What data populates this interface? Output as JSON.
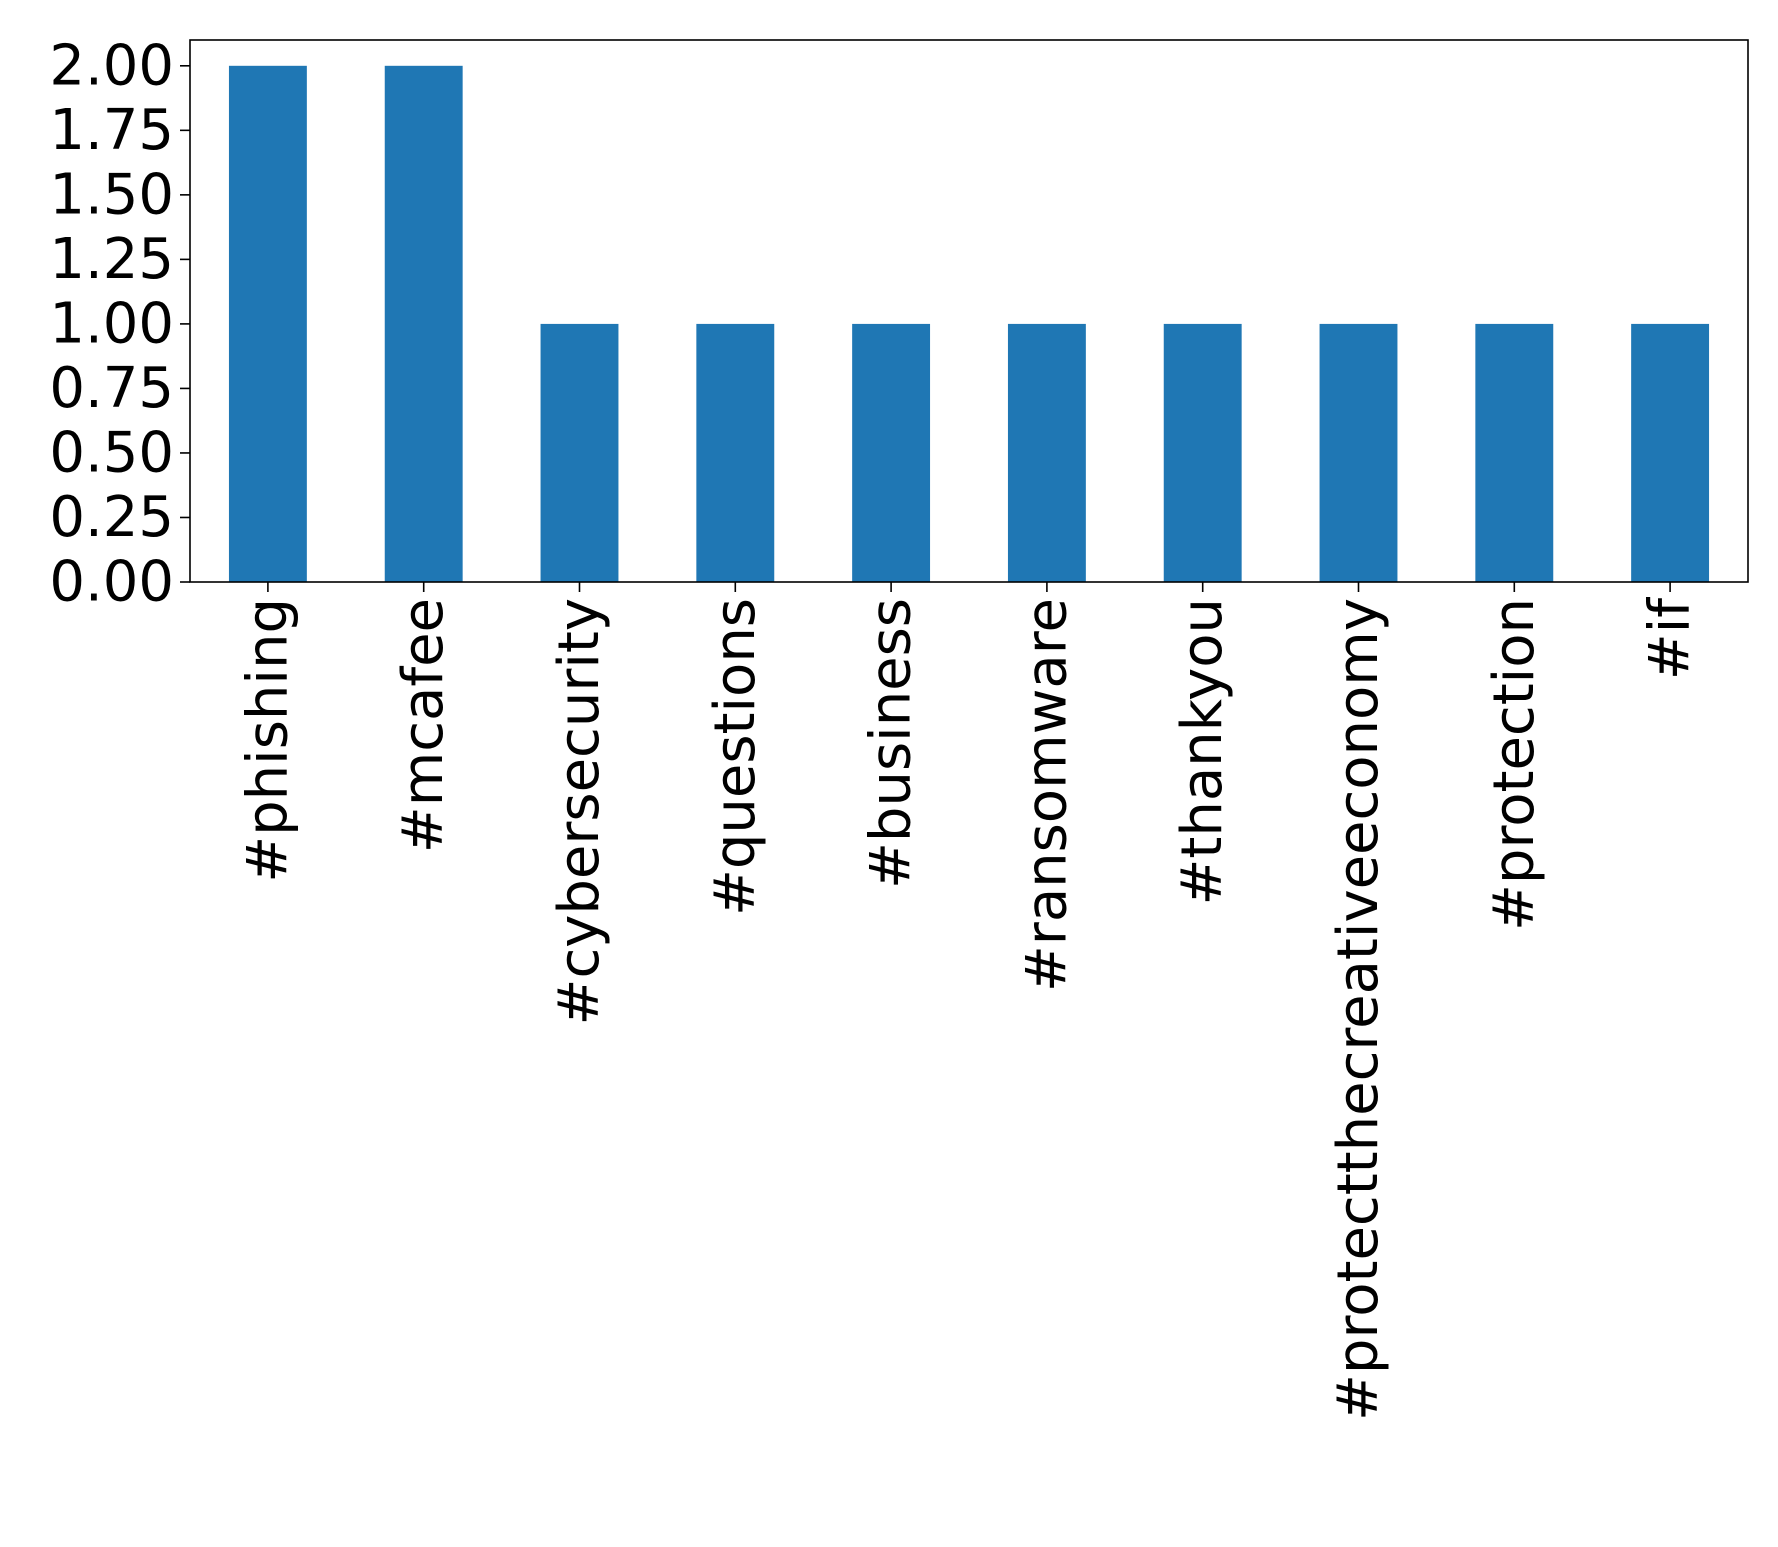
{
  "chart_data": {
    "type": "bar",
    "title": "",
    "xlabel": "",
    "ylabel": "",
    "categories": [
      "#phishing",
      "#mcafee",
      "#cybersecurity",
      "#questions",
      "#business",
      "#ransomware",
      "#thankyou",
      "#protectthecreativeeconomy",
      "#protection",
      "#if"
    ],
    "values": [
      2,
      2,
      1,
      1,
      1,
      1,
      1,
      1,
      1,
      1
    ],
    "ylim": [
      0,
      2.1
    ],
    "yticks": [
      "0.00",
      "0.25",
      "0.50",
      "0.75",
      "1.00",
      "1.25",
      "1.50",
      "1.75",
      "2.00"
    ],
    "bar_color": "#1f77b4",
    "grid": false,
    "legend": "none",
    "x_tick_rotation": "vertical"
  }
}
